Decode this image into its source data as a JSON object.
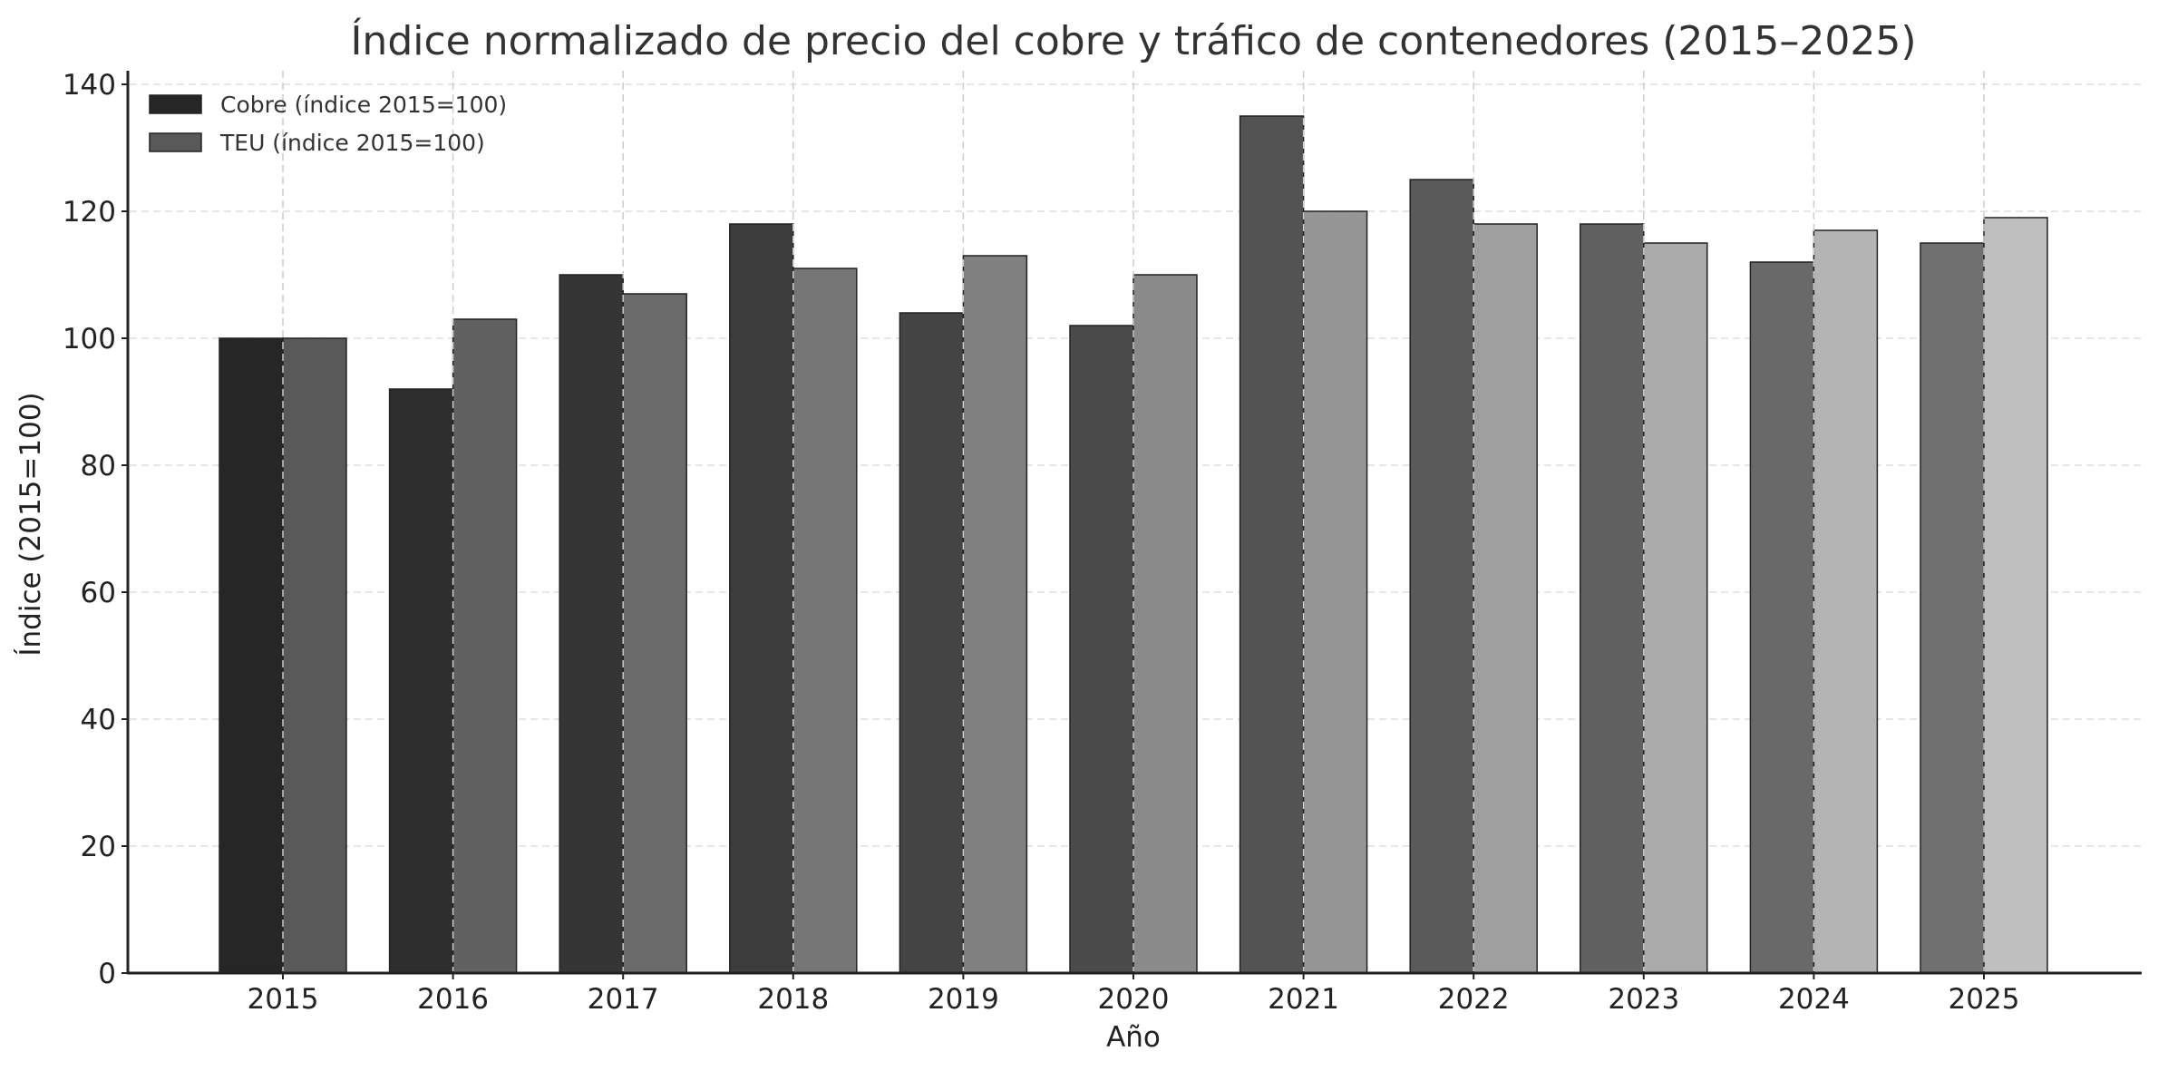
{
  "chart_data": {
    "type": "bar",
    "title": "Índice normalizado de precio del cobre y tráfico de contenedores (2015–2025)",
    "xlabel": "Año",
    "ylabel": "Índice (2015=100)",
    "categories": [
      "2015",
      "2016",
      "2017",
      "2018",
      "2019",
      "2020",
      "2021",
      "2022",
      "2023",
      "2024",
      "2025"
    ],
    "series": [
      {
        "name": "Cobre (índice 2015=100)",
        "values": [
          100,
          92,
          110,
          118,
          104,
          102,
          135,
          125,
          118,
          112,
          115
        ],
        "colors": [
          "#262626",
          "#2e2e2e",
          "#353535",
          "#3d3d3d",
          "#444444",
          "#4b4b4b",
          "#535353",
          "#5a5a5a",
          "#616161",
          "#696969",
          "#707070"
        ],
        "legend_color": "#262626"
      },
      {
        "name": "TEU (índice 2015=100)",
        "values": [
          100,
          103,
          107,
          111,
          113,
          110,
          120,
          118,
          115,
          117,
          119
        ],
        "colors": [
          "#595959",
          "#616161",
          "#6b6b6b",
          "#767676",
          "#808080",
          "#8a8a8a",
          "#959595",
          "#9f9f9f",
          "#aaaaaa",
          "#b4b4b4",
          "#bfbfbf"
        ],
        "legend_color": "#595959"
      }
    ],
    "ylim": [
      0,
      140
    ],
    "yticks": [
      0,
      20,
      40,
      60,
      80,
      100,
      120,
      140
    ],
    "grid": true,
    "legend_position": "upper left"
  }
}
